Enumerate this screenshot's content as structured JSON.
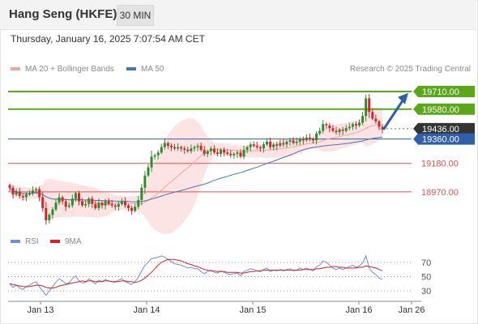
{
  "header": {
    "instrument": "Hang Seng (HKFE)",
    "interval": "30 MIN"
  },
  "timestamp": "Thursday, January 16, 2025 7:07:54 AM CET",
  "legend": {
    "ma_bb_label": "MA 20 + Bollinger Bands",
    "ma50_label": "MA 50",
    "rsi_label": "RSI",
    "ma9_label": "9MA",
    "copyright": "Research © 2025 Trading Central"
  },
  "colors": {
    "bollinger_fill": "#fde4e4",
    "ma20": "#f4a3a3",
    "ma50": "#4a72b8",
    "candle_up": "#2e8b2e",
    "candle_down": "#cc2a2a",
    "resistance": "#5aa81a",
    "pivot": "#2f5fa8",
    "support": "#e05050",
    "last_price": "#333333",
    "rsi": "#6f8ed8",
    "rsi_ma": "#dd1f1f",
    "arrow": "#2f5fa8"
  },
  "chart_data": [
    {
      "type": "candlestick",
      "title": "Hang Seng (HKFE)",
      "x_tick_labels": [
        "Jan 13",
        "Jan 14",
        "Jan 15",
        "Jan 16",
        "Jan 26"
      ],
      "ylim": [
        18700,
        19800
      ],
      "levels": [
        {
          "value": 19710.0,
          "label": "19710.00",
          "kind": "resistance"
        },
        {
          "value": 19580.0,
          "label": "19580.00",
          "kind": "resistance"
        },
        {
          "value": 19436.0,
          "label": "19436.00",
          "kind": "last"
        },
        {
          "value": 19360.0,
          "label": "19360.00",
          "kind": "pivot"
        },
        {
          "value": 19180.0,
          "label": "19180.00",
          "kind": "support"
        },
        {
          "value": 18970.0,
          "label": "18970.00",
          "kind": "support"
        }
      ],
      "close": [
        19000,
        18950,
        18970,
        18940,
        18930,
        18950,
        18960,
        18980,
        18990,
        18930,
        18850,
        18760,
        18800,
        18840,
        18890,
        18930,
        18900,
        18860,
        18870,
        18920,
        18960,
        18900,
        18870,
        18880,
        18920,
        18880,
        18850,
        18890,
        18870,
        18900,
        18880,
        18870,
        18860,
        18880,
        18900,
        18870,
        18850,
        18830,
        18860,
        18910,
        19000,
        19090,
        19150,
        19230,
        19240,
        19260,
        19300,
        19330,
        19310,
        19300,
        19290,
        19300,
        19290,
        19280,
        19270,
        19290,
        19300,
        19310,
        19280,
        19250,
        19270,
        19290,
        19260,
        19250,
        19280,
        19260,
        19250,
        19240,
        19250,
        19260,
        19230,
        19280,
        19300,
        19320,
        19310,
        19300,
        19290,
        19320,
        19340,
        19300,
        19320,
        19310,
        19330,
        19320,
        19340,
        19350,
        19330,
        19340,
        19360,
        19350,
        19370,
        19360,
        19350,
        19400,
        19420,
        19470,
        19460,
        19440,
        19420,
        19410,
        19430,
        19420,
        19440,
        19450,
        19470,
        19460,
        19480,
        19530,
        19660,
        19560,
        19510,
        19490,
        19450,
        19430
      ],
      "rsi_ylim": [
        20,
        80
      ],
      "rsi_ticks": [
        70,
        50,
        30
      ],
      "rsi": [
        40,
        35,
        38,
        34,
        32,
        36,
        38,
        41,
        43,
        36,
        30,
        24,
        30,
        36,
        42,
        47,
        44,
        40,
        41,
        47,
        51,
        44,
        41,
        42,
        47,
        43,
        40,
        45,
        43,
        46,
        44,
        43,
        42,
        45,
        47,
        43,
        41,
        39,
        43,
        49,
        58,
        66,
        70,
        75,
        76,
        77,
        79,
        77,
        74,
        71,
        68,
        67,
        66,
        64,
        62,
        63,
        61,
        61,
        57,
        54,
        57,
        59,
        56,
        55,
        58,
        56,
        54,
        53,
        54,
        55,
        51,
        57,
        59,
        61,
        60,
        58,
        57,
        60,
        62,
        57,
        59,
        58,
        60,
        58,
        60,
        61,
        58,
        59,
        62,
        60,
        62,
        60,
        58,
        64,
        66,
        72,
        70,
        66,
        62,
        60,
        62,
        60,
        62,
        64,
        66,
        63,
        65,
        69,
        79,
        62,
        56,
        53,
        48,
        46
      ],
      "rsi_ma": [
        40,
        39,
        38,
        37,
        36,
        36,
        36,
        37,
        38,
        38,
        37,
        35,
        34,
        34,
        35,
        37,
        38,
        39,
        40,
        41,
        42,
        43,
        44,
        43,
        44,
        44,
        43,
        43,
        43,
        44,
        44,
        43,
        43,
        43,
        44,
        44,
        43,
        43,
        42,
        43,
        45,
        48,
        52,
        56,
        61,
        66,
        70,
        72,
        74,
        74,
        74,
        73,
        72,
        70,
        68,
        67,
        65,
        64,
        62,
        60,
        59,
        58,
        58,
        57,
        57,
        57,
        56,
        56,
        56,
        56,
        55,
        55,
        56,
        57,
        57,
        58,
        58,
        59,
        59,
        59,
        59,
        59,
        59,
        59,
        59,
        59,
        59,
        59,
        59,
        60,
        60,
        60,
        60,
        61,
        61,
        62,
        63,
        63,
        64,
        64,
        63,
        63,
        62,
        62,
        62,
        62,
        63,
        63,
        65,
        64,
        63,
        62,
        60,
        58
      ]
    }
  ]
}
